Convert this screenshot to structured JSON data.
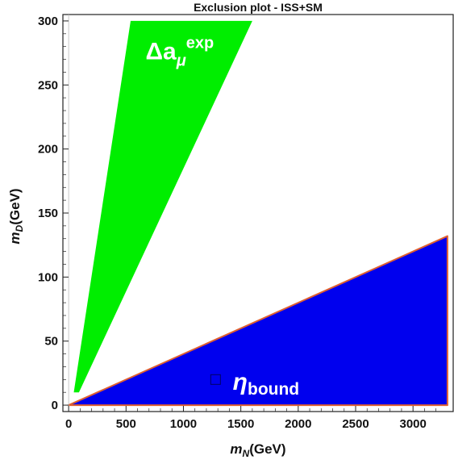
{
  "chart_data": {
    "type": "area",
    "title": "Exclusion plot - ISS+SM",
    "xlabel": {
      "main": "m",
      "sub": "N",
      "unit": "(GeV)"
    },
    "ylabel": {
      "main": "m",
      "sub": "D",
      "unit": "(GeV)"
    },
    "xlim": [
      -50,
      3350
    ],
    "ylim": [
      -5,
      305
    ],
    "xticks": [
      0,
      500,
      1000,
      1500,
      2000,
      2500,
      3000
    ],
    "yticks": [
      0,
      50,
      100,
      150,
      200,
      250,
      300
    ],
    "grid": false,
    "regions": [
      {
        "name": "delta_a_mu_exp",
        "label": {
          "main": "Δa",
          "sub": "μ",
          "sup": "exp"
        },
        "fill": "#00ee00",
        "stroke": "none",
        "points": [
          [
            45,
            10
          ],
          [
            90,
            10
          ],
          [
            1600,
            300
          ],
          [
            540,
            300
          ]
        ],
        "label_at": [
          670,
          270
        ]
      },
      {
        "name": "eta_bound",
        "label": {
          "main": "η",
          "sub": "bound"
        },
        "fill": "#0000ee",
        "stroke": "#e06030",
        "points": [
          [
            0,
            0
          ],
          [
            3300,
            132
          ],
          [
            3300,
            0
          ]
        ],
        "label_at": [
          1430,
          12
        ],
        "marker_at": [
          1280,
          20
        ]
      }
    ]
  }
}
